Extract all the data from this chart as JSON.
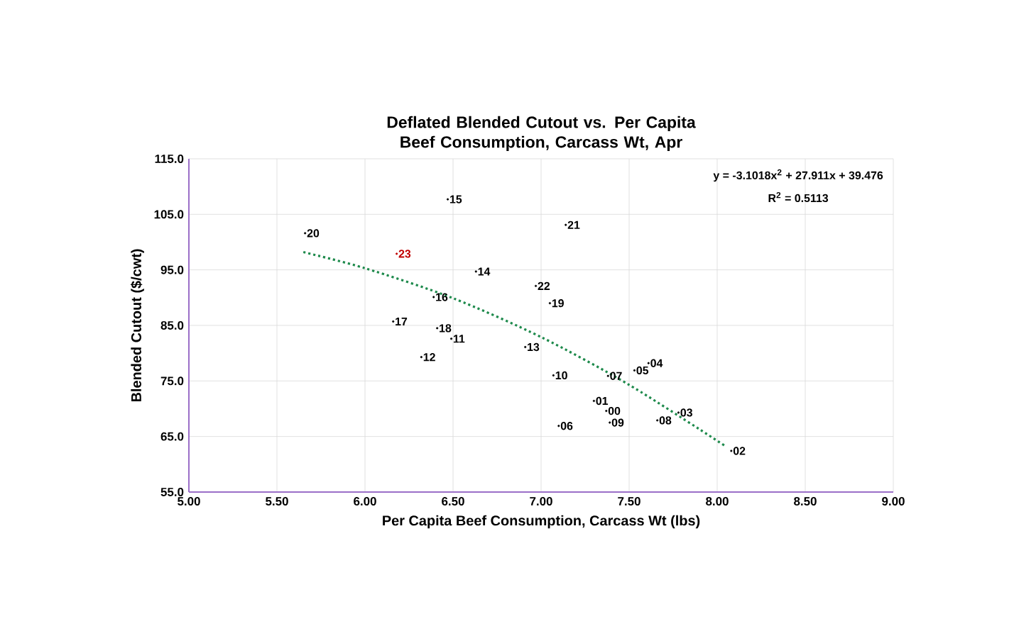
{
  "chart_data": {
    "type": "scatter",
    "title": "Deflated Blended Cutout vs. Per Capita Beef Consumption, Carcass Wt, Apr",
    "xlabel": "Per Capita Beef Consumption, Carcass Wt (lbs)",
    "ylabel": "Blended Cutout ($/cwt)",
    "annotations": [
      "y = -3.1018x$^{2}$ + 27.911x + 39.476",
      "R$^{2}$ = 0.5113",
      {
        "text": "20",
        "x": 5.66,
        "y": 101.6
      },
      {
        "text": "23",
        "x": 6.18,
        "y": 97.9
      },
      {
        "text": "15",
        "x": 6.47,
        "y": 107.7
      },
      {
        "text": "21",
        "x": 7.14,
        "y": 103.1
      },
      {
        "text": "14",
        "x": 6.63,
        "y": 94.7
      },
      {
        "text": "22",
        "x": 6.97,
        "y": 92.1
      },
      {
        "text": "16",
        "x": 6.39,
        "y": 90.1
      },
      {
        "text": "19",
        "x": 7.05,
        "y": 89.0
      },
      {
        "text": "17",
        "x": 6.16,
        "y": 85.7
      },
      {
        "text": "18",
        "x": 6.41,
        "y": 84.5
      },
      {
        "text": "11",
        "x": 6.49,
        "y": 82.6
      },
      {
        "text": "13",
        "x": 6.91,
        "y": 81.1
      },
      {
        "text": "12",
        "x": 6.32,
        "y": 79.3
      },
      {
        "text": "10",
        "x": 7.07,
        "y": 76.0
      },
      {
        "text": "07",
        "x": 7.38,
        "y": 75.9
      },
      {
        "text": "05",
        "x": 7.53,
        "y": 76.9
      },
      {
        "text": "04",
        "x": 7.61,
        "y": 78.2
      },
      {
        "text": "01",
        "x": 7.3,
        "y": 71.4
      },
      {
        "text": "00",
        "x": 7.37,
        "y": 69.6
      },
      {
        "text": "09",
        "x": 7.39,
        "y": 67.5
      },
      {
        "text": "06",
        "x": 7.1,
        "y": 66.9
      },
      {
        "text": "08",
        "x": 7.66,
        "y": 67.9
      },
      {
        "text": "03",
        "x": 7.78,
        "y": 69.3
      },
      {
        "text": "02",
        "x": 8.08,
        "y": 62.4
      }
    ],
    "series": [
      {
        "marker": "circle",
        "x": [
          5.66,
          6.18,
          6.47,
          7.14,
          6.63,
          6.97,
          6.39,
          7.05,
          6.16,
          6.41,
          6.49,
          6.91,
          6.32,
          7.07,
          7.38,
          7.53,
          7.61,
          7.3,
          7.37,
          7.39,
          7.1,
          7.66,
          7.78,
          8.08
        ],
        "values": [
          101.6,
          97.9,
          107.7,
          103.1,
          94.7,
          92.1,
          90.1,
          89.0,
          85.7,
          84.5,
          82.6,
          81.1,
          79.3,
          76.0,
          75.9,
          76.9,
          78.2,
          71.4,
          69.6,
          67.5,
          66.9,
          67.9,
          69.3,
          62.4
        ],
        "colors": [
          "#000000",
          "#c00000",
          "#000000",
          "#000000",
          "#000000",
          "#000000",
          "#000000",
          "#000000",
          "#000000",
          "#000000",
          "#000000",
          "#000000",
          "#000000",
          "#000000",
          "#000000",
          "#000000",
          "#000000",
          "#000000",
          "#000000",
          "#000000",
          "#000000",
          "#000000",
          "#000000",
          "#000000"
        ]
      },
      {
        "type": "line",
        "line_style": "dotted",
        "color": "#1e8a4c",
        "x": [
          5.65,
          6.0,
          6.5,
          7.0,
          7.5,
          8.05
        ],
        "values": [
          98.2,
          95.3,
          89.9,
          82.9,
          74.3,
          63.2
        ]
      }
    ],
    "xlim": [
      5.0,
      9.0
    ],
    "ylim": [
      55.0,
      115.0
    ],
    "xticks": [
      {
        "value": 5.0,
        "label": "5.00"
      },
      {
        "value": 5.5,
        "label": "5.50"
      },
      {
        "value": 6.0,
        "label": "6.00"
      },
      {
        "value": 6.5,
        "label": "6.50"
      },
      {
        "value": 7.0,
        "label": "7.00"
      },
      {
        "value": 7.5,
        "label": "7.50"
      },
      {
        "value": 8.0,
        "label": "8.00"
      },
      {
        "value": 8.5,
        "label": "8.50"
      },
      {
        "value": 9.0,
        "label": "9.00"
      }
    ],
    "yticks": [
      {
        "value": 55.0,
        "label": "55.0"
      },
      {
        "value": 65.0,
        "label": "65.0"
      },
      {
        "value": 75.0,
        "label": "75.0"
      },
      {
        "value": 85.0,
        "label": "85.0"
      },
      {
        "value": 95.0,
        "label": "95.0"
      },
      {
        "value": 105.0,
        "label": "105.0"
      },
      {
        "value": 115.0,
        "label": "115.0"
      }
    ],
    "grid": true
  }
}
